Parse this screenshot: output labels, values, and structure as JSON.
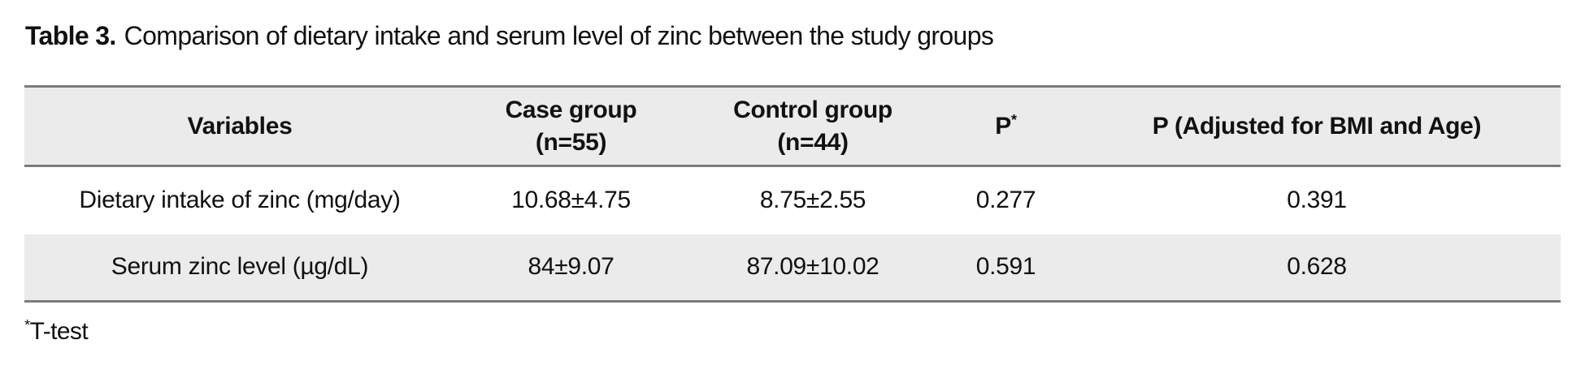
{
  "title": {
    "number": "Table 3.",
    "text": "Comparison of dietary intake and serum level of zinc between the study groups"
  },
  "table": {
    "columns": [
      {
        "label": "Variables"
      },
      {
        "line1": "Case group",
        "line2": "(n=55)"
      },
      {
        "line1": "Control group",
        "line2": "(n=44)"
      },
      {
        "label": "P",
        "sup": "*"
      },
      {
        "label": "P (Adjusted for BMI and Age)"
      }
    ],
    "rows": [
      {
        "variable": "Dietary intake of zinc (mg/day)",
        "case": "10.68±4.75",
        "control": "8.75±2.55",
        "p": "0.277",
        "p_adjusted": "0.391"
      },
      {
        "variable": "Serum zinc level (µg/dL)",
        "case": "84±9.07",
        "control": "87.09±10.02",
        "p": "0.591",
        "p_adjusted": "0.628"
      }
    ]
  },
  "footnote": {
    "sup": "*",
    "text": "T-test"
  },
  "colors": {
    "header_background": "#ebebeb",
    "stripe_background": "#ebebeb",
    "rule": "#7b7b7b",
    "text": "#111111"
  }
}
